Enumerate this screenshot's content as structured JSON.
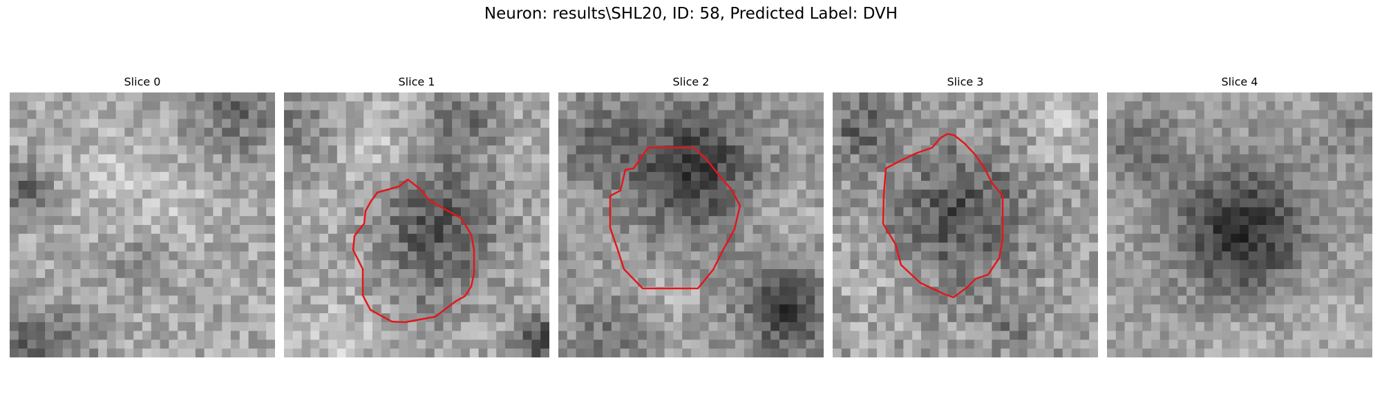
{
  "figure": {
    "title": "Neuron: results\\SHL20, ID: 58, Predicted Label: DVH"
  },
  "panels": [
    {
      "title": "Slice 0",
      "has_contour": false
    },
    {
      "title": "Slice 1",
      "has_contour": true
    },
    {
      "title": "Slice 2",
      "has_contour": true
    },
    {
      "title": "Slice 3",
      "has_contour": true
    },
    {
      "title": "Slice 4",
      "has_contour": false
    }
  ],
  "colors": {
    "contour": "#e4161b",
    "background": "#ffffff"
  }
}
